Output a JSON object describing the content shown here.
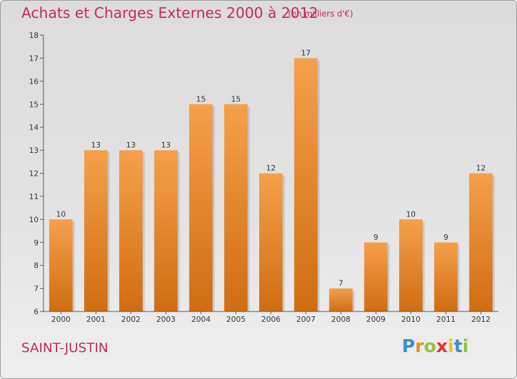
{
  "header": {
    "title": "Achats et Charges Externes 2000 à 2012",
    "subtitle": "(en milliers d'€)"
  },
  "footer": {
    "commune": "SAINT-JUSTIN",
    "logo_text": "Proxiti"
  },
  "colors": {
    "title": "#c32c56",
    "bar_light": "#f5a04c",
    "bar_dark": "#d06d12",
    "background": "#e3e3e3"
  },
  "chart_data": {
    "type": "bar",
    "categories": [
      "2000",
      "2001",
      "2002",
      "2003",
      "2004",
      "2005",
      "2006",
      "2007",
      "2008",
      "2009",
      "2010",
      "2011",
      "2012"
    ],
    "values": [
      10,
      13,
      13,
      13,
      15,
      15,
      12,
      17,
      7,
      9,
      10,
      9,
      12
    ],
    "data_labels": [
      "10",
      "13",
      "13",
      "13",
      "15",
      "15",
      "12",
      "17",
      "7",
      "9",
      "10",
      "9",
      "12"
    ],
    "yticks": [
      "6",
      "7",
      "8",
      "9",
      "10",
      "11",
      "12",
      "13",
      "14",
      "15",
      "16",
      "17",
      "18"
    ],
    "ylim": [
      6,
      18
    ],
    "grid": false,
    "legend": "none"
  }
}
